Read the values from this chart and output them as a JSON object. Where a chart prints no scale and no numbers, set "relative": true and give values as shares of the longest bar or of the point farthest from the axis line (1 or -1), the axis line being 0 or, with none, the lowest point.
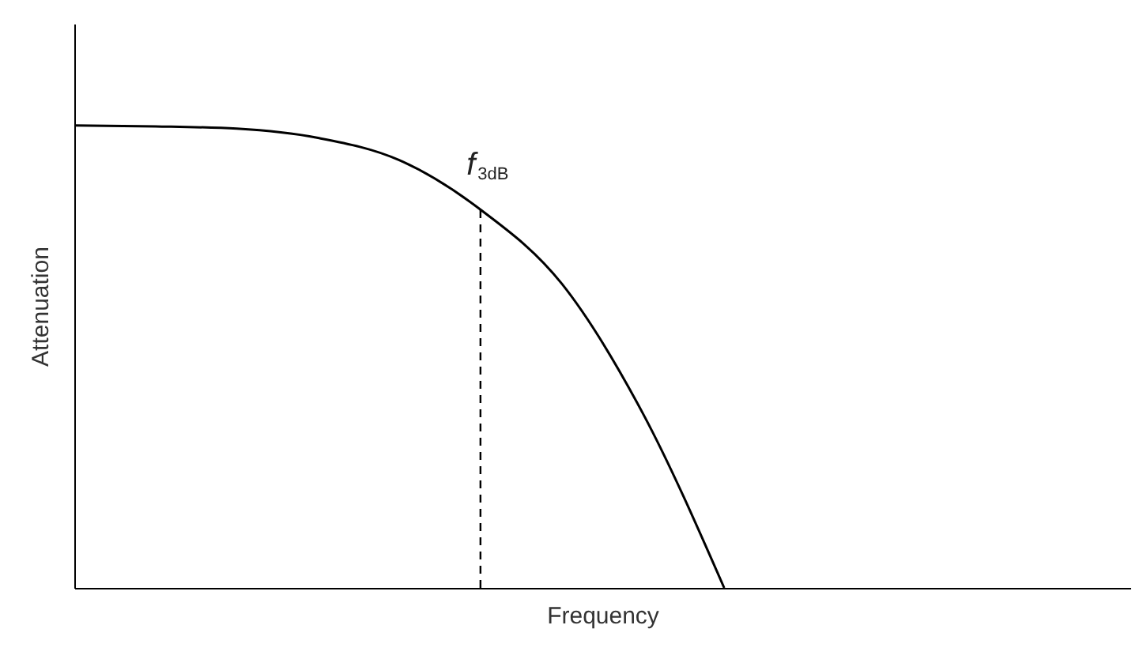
{
  "chart_data": {
    "type": "line",
    "relative": true,
    "xlabel": "Frequency",
    "ylabel": "Attenuation",
    "categories": [
      null,
      null,
      null,
      null,
      null,
      null,
      null,
      null,
      null,
      null,
      null,
      null,
      null,
      null
    ],
    "series": [
      {
        "color": "#000000",
        "values": [
          1.0,
          0.998,
          0.993,
          0.973,
          0.925,
          0.818,
          0.658,
          0.377,
          0,
          null,
          null,
          null,
          null,
          null
        ]
      }
    ],
    "annotations": [
      "f$_{3dB}$"
    ],
    "tick_labels": false,
    "grid": false,
    "marker": "none",
    "line_style": "solid"
  }
}
